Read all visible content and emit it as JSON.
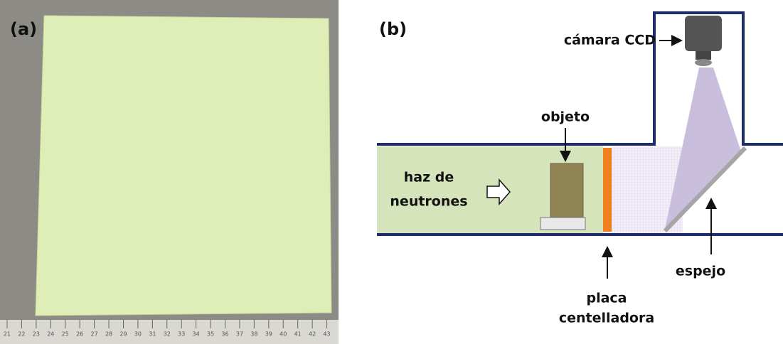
{
  "panel_a": {
    "label": "(a)",
    "ruler_numbers": [
      21,
      22,
      23,
      24,
      25,
      26,
      27,
      28,
      29,
      30,
      31,
      32,
      33,
      34,
      35,
      36,
      37,
      38,
      39,
      40,
      41,
      42,
      43
    ]
  },
  "panel_b": {
    "label": "(b)",
    "camera": "cámara CCD",
    "object": "objeto",
    "beam": [
      "haz de",
      "neutrones"
    ],
    "plate": [
      "placa",
      "centelladora"
    ],
    "mirror": "espejo"
  }
}
